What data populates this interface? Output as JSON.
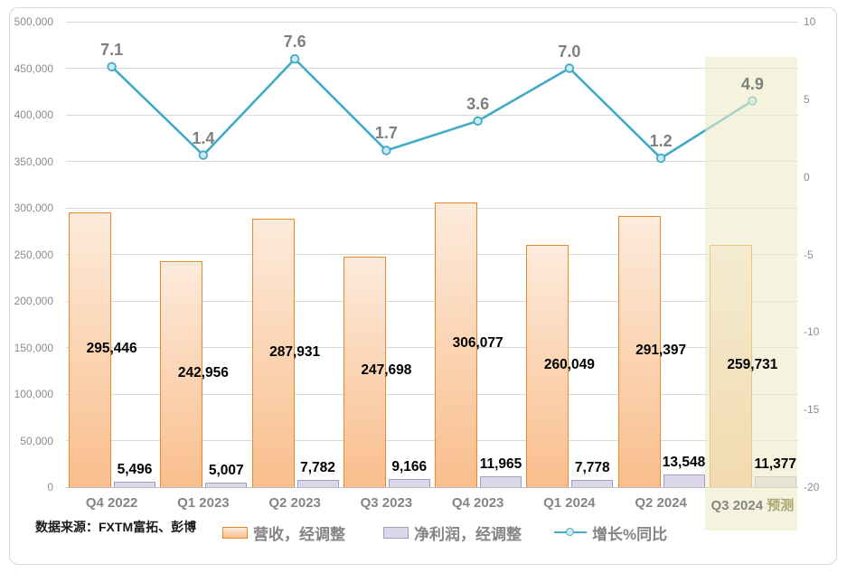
{
  "chart_data": {
    "type": "combo",
    "categories": [
      "Q4 2022",
      "Q1 2023",
      "Q2 2023",
      "Q3 2023",
      "Q4 2023",
      "Q1 2024",
      "Q2 2024",
      "Q3 2024"
    ],
    "category_suffixes": [
      "",
      "",
      "",
      "",
      "",
      "",
      "",
      "预测"
    ],
    "series": [
      {
        "name": "营收，经调整",
        "type": "bar",
        "axis": "left",
        "values": [
          295446,
          242956,
          287931,
          247698,
          306077,
          260049,
          291397,
          259731
        ],
        "labels": [
          "295,446",
          "242,956",
          "287,931",
          "247,698",
          "306,077",
          "260,049",
          "291,397",
          "259,731"
        ]
      },
      {
        "name": "净利润，经调整",
        "type": "bar",
        "axis": "left",
        "values": [
          5496,
          5007,
          7782,
          9166,
          11965,
          7778,
          13548,
          11377
        ],
        "labels": [
          "5,496",
          "5,007",
          "7,782",
          "9,166",
          "11,965",
          "7,778",
          "13,548",
          "11,377"
        ]
      },
      {
        "name": "增长%同比",
        "type": "line",
        "axis": "right",
        "values": [
          7.1,
          1.4,
          7.6,
          1.7,
          3.6,
          7.0,
          1.2,
          4.9
        ],
        "labels": [
          "7.1",
          "1.4",
          "7.6",
          "1.7",
          "3.6",
          "7.0",
          "1.2",
          "4.9"
        ]
      }
    ],
    "left_axis": {
      "min": 0,
      "max": 500000,
      "step": 50000,
      "tick_labels": [
        "500,000",
        "450,000",
        "400,000",
        "350,000",
        "300,000",
        "250,000",
        "200,000",
        "150,000",
        "100,000",
        "50,000",
        "0"
      ]
    },
    "right_axis": {
      "min": -20,
      "max": 10,
      "step": 5,
      "tick_labels": [
        "10",
        "5",
        "0",
        "-5",
        "-10",
        "-15",
        "-20"
      ]
    },
    "grid": true,
    "legend_position": "bottom",
    "highlight": {
      "category_index": 7,
      "note": "预测"
    }
  },
  "source_note": "数据来源：FXTM富拓、彭博",
  "colors": {
    "rev_border": "#E8882F",
    "rev_top": "#FDEBDC",
    "rev_bottom": "#F9BE8C",
    "prof_fill": "#DCD6EA",
    "prof_border": "#A99BC0",
    "line": "#41AAC6",
    "marker_fill": "#CDEBF5",
    "highlight_band": "#F4F4DE",
    "forecast_text": "#ABA772",
    "axis_text": "#8C8C8C",
    "cat_text": "#858585",
    "bar_label": "#000000",
    "line_label": "#7F7F7F",
    "gridline": "#D9D9D9",
    "axisline": "#BFBFBF"
  }
}
